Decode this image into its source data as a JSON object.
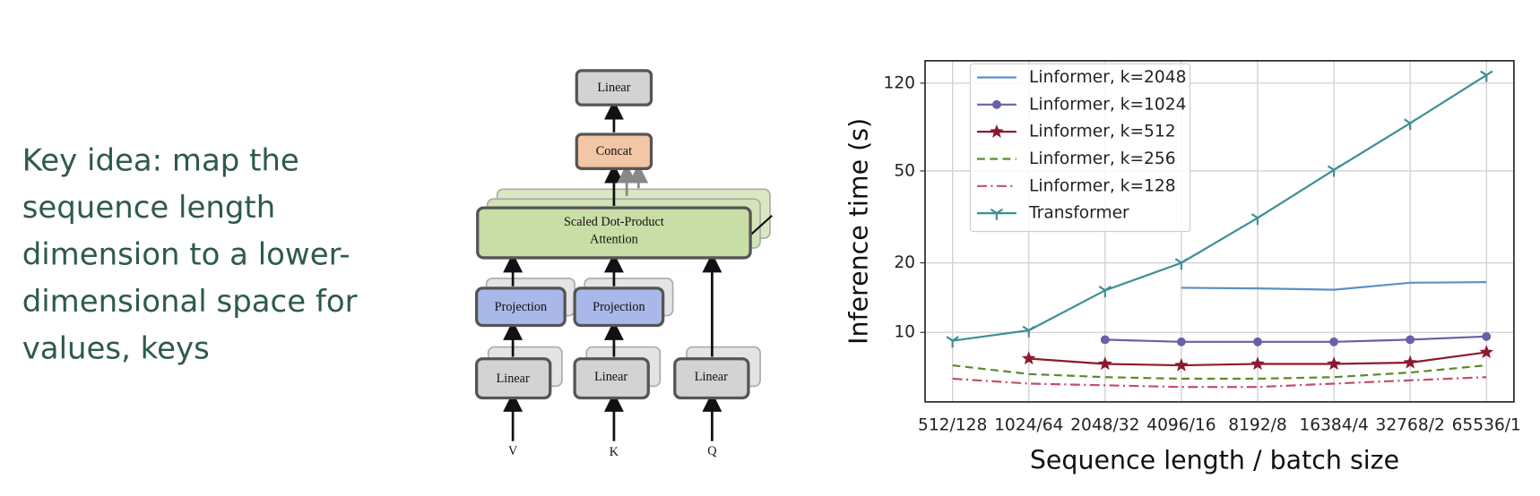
{
  "text": {
    "lines": [
      "Key idea: map the",
      "sequence length",
      "dimension to a lower-",
      "dimensional space for",
      "values, keys"
    ]
  },
  "diagram": {
    "top_linear": "Linear",
    "concat": "Concat",
    "attention": [
      "Scaled Dot-Product",
      "Attention"
    ],
    "projection": [
      "Projection",
      "Projection"
    ],
    "linear": [
      "Linear",
      "Linear",
      "Linear"
    ],
    "inputs": [
      "V",
      "K",
      "Q"
    ]
  },
  "chart_data": {
    "type": "line",
    "x_label": "Sequence length / batch size",
    "y_label": "Inference time (s)",
    "categories": [
      "512/128",
      "1024/64",
      "2048/32",
      "4096/16",
      "8192/8",
      "16384/4",
      "32768/2",
      "65536/1"
    ],
    "log_y": true,
    "ylim": [
      5,
      150
    ],
    "yticks": [
      10,
      20,
      50,
      120
    ],
    "grid": true,
    "legend": "upper left",
    "series": [
      {
        "name": "Linformer, k=2048",
        "color": "#5b8fc7",
        "linestyle": "solid",
        "marker": "none",
        "values": [
          null,
          null,
          null,
          15.6,
          15.5,
          15.3,
          16.4,
          16.5
        ]
      },
      {
        "name": "Linformer, k=1024",
        "color": "#6b5fa8",
        "linestyle": "solid",
        "marker": "circle",
        "values": [
          null,
          null,
          9.3,
          9.1,
          9.1,
          9.1,
          9.3,
          9.6
        ]
      },
      {
        "name": "Linformer, k=512",
        "color": "#8b1a2e",
        "linestyle": "solid",
        "marker": "star",
        "values": [
          null,
          7.7,
          7.3,
          7.2,
          7.3,
          7.3,
          7.4,
          8.2
        ]
      },
      {
        "name": "Linformer, k=256",
        "color": "#5a8a2a",
        "linestyle": "dashed",
        "marker": "none",
        "values": [
          7.2,
          6.6,
          6.4,
          6.3,
          6.3,
          6.4,
          6.7,
          7.2
        ]
      },
      {
        "name": "Linformer, k=128",
        "color": "#c0506a",
        "linestyle": "dashdot",
        "marker": "none",
        "values": [
          6.3,
          6.0,
          5.9,
          5.8,
          5.8,
          6.0,
          6.2,
          6.4
        ]
      },
      {
        "name": "Transformer",
        "color": "#3d8f94",
        "linestyle": "solid",
        "marker": "tri_down",
        "values": [
          9.2,
          10.2,
          15.2,
          20,
          31.3,
          50.5,
          80.5,
          130
        ]
      }
    ]
  }
}
